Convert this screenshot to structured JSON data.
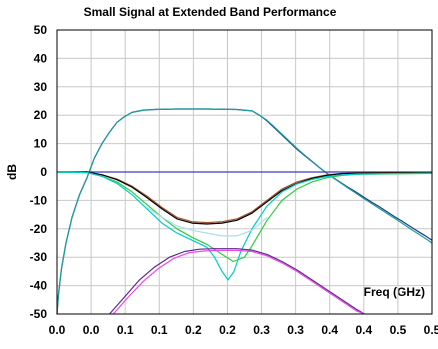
{
  "chart_data": {
    "type": "line",
    "title": "Small Signal at Extended Band Performance",
    "xlabel": "Freq (GHz)",
    "ylabel": "dB",
    "xlim": [
      0,
      0.5
    ],
    "ylim": [
      -50,
      50
    ],
    "x_ticks": [
      "0.0",
      "0.0",
      "0.1",
      "0.1",
      "0.2",
      "0.2",
      "0.3",
      "0.3",
      "0.4",
      "0.4",
      "0.5",
      "0.5"
    ],
    "y_ticks": [
      "50",
      "40",
      "30",
      "20",
      "10",
      "0",
      "-10",
      "-20",
      "-30",
      "-40",
      "-50"
    ],
    "grid": true,
    "legend": "none",
    "series": [
      {
        "color": "#1a3a8a",
        "points": [
          [
            0,
            -50
          ],
          [
            0.002,
            -43
          ],
          [
            0.006,
            -34
          ],
          [
            0.012,
            -25
          ],
          [
            0.02,
            -16
          ],
          [
            0.03,
            -8
          ],
          [
            0.04,
            -2
          ],
          [
            0.05,
            5
          ],
          [
            0.06,
            10
          ],
          [
            0.07,
            14
          ],
          [
            0.08,
            17.5
          ],
          [
            0.09,
            19.5
          ],
          [
            0.1,
            21
          ],
          [
            0.115,
            21.8
          ],
          [
            0.13,
            22
          ],
          [
            0.16,
            22.2
          ],
          [
            0.2,
            22.2
          ],
          [
            0.24,
            22
          ],
          [
            0.26,
            21.5
          ],
          [
            0.27,
            20
          ],
          [
            0.28,
            18
          ],
          [
            0.29,
            15.5
          ],
          [
            0.3,
            13
          ],
          [
            0.31,
            10.5
          ],
          [
            0.32,
            8
          ],
          [
            0.33,
            5.8
          ],
          [
            0.34,
            3.7
          ],
          [
            0.35,
            1.5
          ],
          [
            0.36,
            -0.5
          ],
          [
            0.37,
            -2.3
          ],
          [
            0.38,
            -4
          ],
          [
            0.39,
            -5.7
          ],
          [
            0.4,
            -7.3
          ],
          [
            0.41,
            -9
          ],
          [
            0.42,
            -10.7
          ],
          [
            0.43,
            -12.3
          ],
          [
            0.44,
            -14
          ],
          [
            0.45,
            -15.7
          ],
          [
            0.46,
            -17.3
          ],
          [
            0.47,
            -19
          ],
          [
            0.48,
            -20.7
          ],
          [
            0.49,
            -22.3
          ],
          [
            0.5,
            -24
          ]
        ]
      },
      {
        "color": "#1a9e9e",
        "points": [
          [
            0,
            -50
          ],
          [
            0.002,
            -43
          ],
          [
            0.006,
            -34
          ],
          [
            0.012,
            -25
          ],
          [
            0.02,
            -16
          ],
          [
            0.03,
            -8
          ],
          [
            0.04,
            -2
          ],
          [
            0.05,
            5
          ],
          [
            0.06,
            10
          ],
          [
            0.07,
            14
          ],
          [
            0.08,
            17.5
          ],
          [
            0.09,
            19.5
          ],
          [
            0.1,
            21
          ],
          [
            0.115,
            21.8
          ],
          [
            0.13,
            22
          ],
          [
            0.16,
            22.2
          ],
          [
            0.2,
            22.2
          ],
          [
            0.24,
            22
          ],
          [
            0.26,
            21.5
          ],
          [
            0.27,
            20
          ],
          [
            0.28,
            18.2
          ],
          [
            0.29,
            15.8
          ],
          [
            0.3,
            13.3
          ],
          [
            0.31,
            10.8
          ],
          [
            0.32,
            8.3
          ],
          [
            0.33,
            6
          ],
          [
            0.34,
            3.8
          ],
          [
            0.35,
            1.6
          ],
          [
            0.36,
            -0.5
          ],
          [
            0.37,
            -2.4
          ],
          [
            0.38,
            -4.2
          ],
          [
            0.39,
            -6
          ],
          [
            0.4,
            -7.7
          ],
          [
            0.41,
            -9.5
          ],
          [
            0.42,
            -11.2
          ],
          [
            0.43,
            -12.9
          ],
          [
            0.44,
            -14.6
          ],
          [
            0.45,
            -16.3
          ],
          [
            0.46,
            -18
          ],
          [
            0.47,
            -19.8
          ],
          [
            0.48,
            -21.5
          ],
          [
            0.49,
            -23.2
          ],
          [
            0.5,
            -25
          ]
        ]
      },
      {
        "color": "#3a3acc",
        "points": [
          [
            0,
            0
          ],
          [
            0.5,
            0
          ]
        ]
      },
      {
        "color": "#a0522d",
        "points": [
          [
            0,
            0
          ],
          [
            0.04,
            0
          ],
          [
            0.06,
            -1
          ],
          [
            0.08,
            -2.5
          ],
          [
            0.1,
            -5
          ],
          [
            0.12,
            -8.5
          ],
          [
            0.14,
            -12.5
          ],
          [
            0.16,
            -16
          ],
          [
            0.18,
            -17.5
          ],
          [
            0.2,
            -17.8
          ],
          [
            0.22,
            -17.5
          ],
          [
            0.24,
            -16.5
          ],
          [
            0.26,
            -14
          ],
          [
            0.28,
            -10
          ],
          [
            0.3,
            -6
          ],
          [
            0.32,
            -3.5
          ],
          [
            0.34,
            -2
          ],
          [
            0.36,
            -1
          ],
          [
            0.38,
            -0.5
          ],
          [
            0.4,
            -0.3
          ],
          [
            0.5,
            -0.2
          ]
        ]
      },
      {
        "color": "#000000",
        "points": [
          [
            0,
            0
          ],
          [
            0.04,
            0
          ],
          [
            0.06,
            -1
          ],
          [
            0.08,
            -2.7
          ],
          [
            0.1,
            -5.3
          ],
          [
            0.12,
            -9
          ],
          [
            0.14,
            -13
          ],
          [
            0.16,
            -16.5
          ],
          [
            0.18,
            -18
          ],
          [
            0.2,
            -18.3
          ],
          [
            0.22,
            -18
          ],
          [
            0.24,
            -17
          ],
          [
            0.26,
            -14.5
          ],
          [
            0.28,
            -10.5
          ],
          [
            0.3,
            -6.5
          ],
          [
            0.32,
            -4
          ],
          [
            0.34,
            -2.3
          ],
          [
            0.36,
            -1.2
          ],
          [
            0.38,
            -0.6
          ],
          [
            0.4,
            -0.4
          ],
          [
            0.5,
            -0.2
          ]
        ]
      },
      {
        "color": "#2ecc40",
        "points": [
          [
            0,
            0
          ],
          [
            0.04,
            -0.2
          ],
          [
            0.06,
            -1.5
          ],
          [
            0.08,
            -3.5
          ],
          [
            0.1,
            -7
          ],
          [
            0.12,
            -11.5
          ],
          [
            0.14,
            -16
          ],
          [
            0.16,
            -20
          ],
          [
            0.18,
            -23
          ],
          [
            0.2,
            -25.5
          ],
          [
            0.22,
            -29
          ],
          [
            0.235,
            -31.5
          ],
          [
            0.25,
            -30
          ],
          [
            0.26,
            -26
          ],
          [
            0.28,
            -17
          ],
          [
            0.3,
            -10
          ],
          [
            0.32,
            -6
          ],
          [
            0.34,
            -3.5
          ],
          [
            0.36,
            -2
          ],
          [
            0.38,
            -1.2
          ],
          [
            0.4,
            -0.8
          ],
          [
            0.5,
            -0.5
          ]
        ]
      },
      {
        "color": "#00cccc",
        "points": [
          [
            0,
            0
          ],
          [
            0.04,
            -0.2
          ],
          [
            0.06,
            -1.5
          ],
          [
            0.08,
            -4
          ],
          [
            0.1,
            -8
          ],
          [
            0.12,
            -13
          ],
          [
            0.14,
            -18
          ],
          [
            0.16,
            -21.5
          ],
          [
            0.18,
            -24
          ],
          [
            0.2,
            -26.5
          ],
          [
            0.21,
            -30
          ],
          [
            0.22,
            -35
          ],
          [
            0.228,
            -38
          ],
          [
            0.236,
            -35
          ],
          [
            0.245,
            -28
          ],
          [
            0.26,
            -20
          ],
          [
            0.28,
            -12
          ],
          [
            0.3,
            -7
          ],
          [
            0.32,
            -4.2
          ],
          [
            0.34,
            -2.6
          ],
          [
            0.36,
            -1.6
          ],
          [
            0.38,
            -1
          ],
          [
            0.4,
            -0.7
          ],
          [
            0.5,
            -0.4
          ]
        ]
      },
      {
        "color": "#aaddee",
        "points": [
          [
            0.12,
            -12.5
          ],
          [
            0.14,
            -16
          ],
          [
            0.16,
            -19
          ],
          [
            0.18,
            -20.5
          ],
          [
            0.2,
            -21.5
          ],
          [
            0.22,
            -22.5
          ],
          [
            0.24,
            -22.5
          ],
          [
            0.26,
            -20.5
          ],
          [
            0.28,
            -16
          ]
        ]
      },
      {
        "color": "#5b2a86",
        "points": [
          [
            0.07,
            -50
          ],
          [
            0.09,
            -44
          ],
          [
            0.11,
            -38
          ],
          [
            0.13,
            -33.5
          ],
          [
            0.15,
            -30
          ],
          [
            0.17,
            -28
          ],
          [
            0.19,
            -27.2
          ],
          [
            0.21,
            -27
          ],
          [
            0.24,
            -27
          ],
          [
            0.26,
            -27.5
          ],
          [
            0.28,
            -29
          ],
          [
            0.3,
            -31.5
          ],
          [
            0.32,
            -34.5
          ],
          [
            0.34,
            -38
          ],
          [
            0.36,
            -41.5
          ],
          [
            0.38,
            -45
          ],
          [
            0.4,
            -48.5
          ],
          [
            0.41,
            -50
          ]
        ]
      },
      {
        "color": "#ee44ee",
        "points": [
          [
            0.075,
            -50
          ],
          [
            0.095,
            -44
          ],
          [
            0.115,
            -38.5
          ],
          [
            0.135,
            -34
          ],
          [
            0.155,
            -30.5
          ],
          [
            0.175,
            -28.5
          ],
          [
            0.195,
            -27.8
          ],
          [
            0.215,
            -27.6
          ],
          [
            0.24,
            -27.6
          ],
          [
            0.26,
            -28
          ],
          [
            0.28,
            -29.5
          ],
          [
            0.3,
            -32
          ],
          [
            0.32,
            -35
          ],
          [
            0.34,
            -38.5
          ],
          [
            0.36,
            -42
          ],
          [
            0.38,
            -45.5
          ],
          [
            0.4,
            -49
          ],
          [
            0.41,
            -50
          ]
        ]
      }
    ]
  }
}
